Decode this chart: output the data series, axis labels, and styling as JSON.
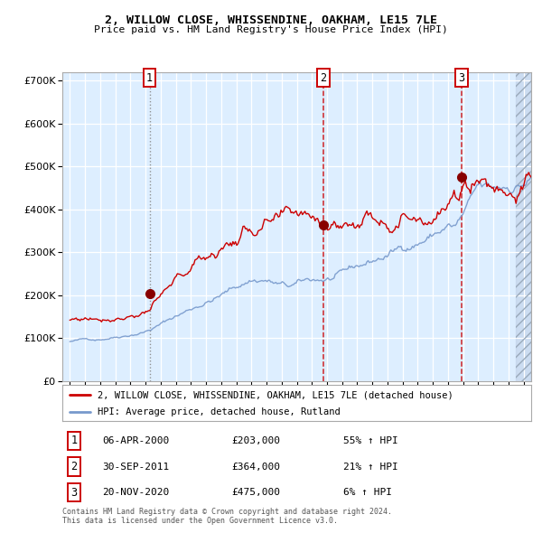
{
  "title1": "2, WILLOW CLOSE, WHISSENDINE, OAKHAM, LE15 7LE",
  "title2": "Price paid vs. HM Land Registry's House Price Index (HPI)",
  "red_label": "2, WILLOW CLOSE, WHISSENDINE, OAKHAM, LE15 7LE (detached house)",
  "blue_label": "HPI: Average price, detached house, Rutland",
  "sale1_date": "06-APR-2000",
  "sale1_price": 203000,
  "sale1_hpi": "55% ↑ HPI",
  "sale2_date": "30-SEP-2011",
  "sale2_price": 364000,
  "sale2_hpi": "21% ↑ HPI",
  "sale3_date": "20-NOV-2020",
  "sale3_price": 475000,
  "sale3_hpi": "6% ↑ HPI",
  "sale1_x": 2000.27,
  "sale2_x": 2011.75,
  "sale3_x": 2020.9,
  "ylim": [
    0,
    720000
  ],
  "xlim": [
    1994.5,
    2025.5
  ],
  "background_color": "#ffffff",
  "plot_bg_color": "#ddeeff",
  "grid_color": "#ffffff",
  "red_color": "#cc0000",
  "blue_color": "#7799cc",
  "footer": "Contains HM Land Registry data © Crown copyright and database right 2024.\nThis data is licensed under the Open Government Licence v3.0."
}
